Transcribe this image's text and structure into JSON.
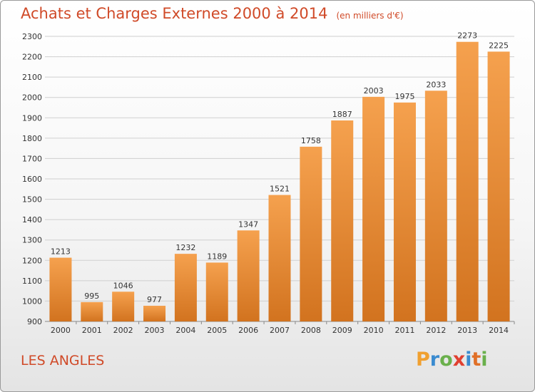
{
  "header": {
    "title": "Achats et Charges Externes 2000 à 2014",
    "subtitle": "(en milliers d'€)"
  },
  "footer": {
    "place": "LES ANGLES",
    "logo_letters": [
      "P",
      "r",
      "o",
      "x",
      "i",
      "t",
      "i"
    ]
  },
  "colors": {
    "title": "#d04a28",
    "bar_light": "#f5a14e",
    "bar_dark": "#d2731f",
    "grid": "#cfcfcf",
    "logo": [
      "#f0a030",
      "#3a8bd0",
      "#6ab04c",
      "#e04030",
      "#3a8bd0",
      "#e07028",
      "#6ab04c"
    ]
  },
  "chart_data": {
    "type": "bar",
    "categories": [
      "2000",
      "2001",
      "2002",
      "2003",
      "2004",
      "2005",
      "2006",
      "2007",
      "2008",
      "2009",
      "2010",
      "2011",
      "2012",
      "2013",
      "2014"
    ],
    "values": [
      1213,
      995,
      1046,
      977,
      1232,
      1189,
      1347,
      1521,
      1758,
      1887,
      2003,
      1975,
      2033,
      2273,
      2225
    ],
    "ylim": [
      900,
      2300
    ],
    "yticks": [
      900,
      1000,
      1100,
      1200,
      1300,
      1400,
      1500,
      1600,
      1700,
      1800,
      1900,
      2000,
      2100,
      2200,
      2300
    ],
    "grid": true
  }
}
